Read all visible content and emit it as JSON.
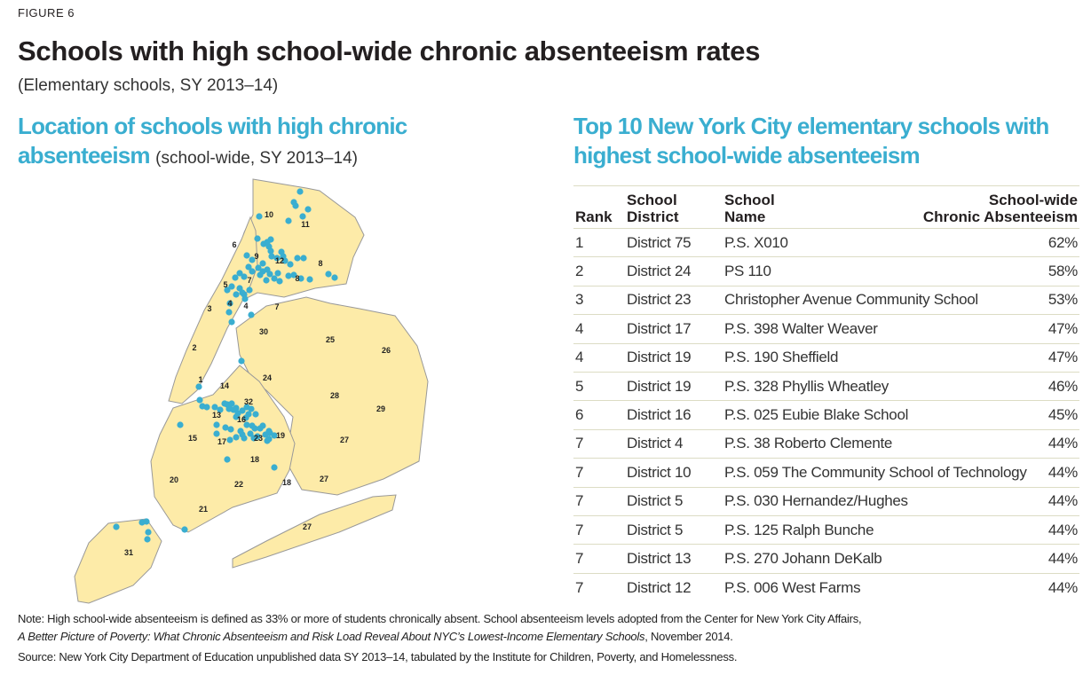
{
  "figure_label": "FIGURE 6",
  "title": "Schools with high school-wide chronic absenteeism rates",
  "subtitle": "(Elementary schools, SY 2013–14)",
  "map": {
    "heading": "Location of schools with high chronic absenteeism",
    "heading_sub": "(school-wide, SY 2013–14)",
    "district_labels": [
      "10",
      "11",
      "6",
      "9",
      "12",
      "8",
      "8",
      "7",
      "5",
      "7",
      "3",
      "4",
      "4",
      "30",
      "25",
      "26",
      "2",
      "24",
      "1",
      "14",
      "32",
      "28",
      "29",
      "13",
      "16",
      "23",
      "19",
      "15",
      "17",
      "27",
      "18",
      "20",
      "22",
      "18",
      "27",
      "21",
      "27",
      "31"
    ],
    "fill_color": "#fdeba8",
    "dot_color": "#3aaed0"
  },
  "table": {
    "heading": "Top 10 New York City elementary schools with highest school-wide absenteeism",
    "headers": {
      "rank": "Rank",
      "district": [
        "School",
        "District"
      ],
      "name": [
        "School",
        "Name"
      ],
      "rate": [
        "School-wide",
        "Chronic Absenteeism"
      ]
    },
    "rows": [
      [
        "1",
        "District 75",
        "P.S. X010",
        "62%"
      ],
      [
        "2",
        "District 24",
        "PS 110",
        "58%"
      ],
      [
        "3",
        "District 23",
        "Christopher Avenue Community School",
        "53%"
      ],
      [
        "4",
        "District 17",
        "P.S. 398 Walter Weaver",
        "47%"
      ],
      [
        "4",
        "District 19",
        "P.S. 190 Sheffield",
        "47%"
      ],
      [
        "5",
        "District 19",
        "P.S. 328 Phyllis Wheatley",
        "46%"
      ],
      [
        "6",
        "District 16",
        "P.S. 025 Eubie Blake School",
        "45%"
      ],
      [
        "7",
        "District 4",
        "P.S. 38 Roberto Clemente",
        "44%"
      ],
      [
        "7",
        "District 10",
        "P.S. 059 The Community School of Technology",
        "44%"
      ],
      [
        "7",
        "District 5",
        "P.S. 030 Hernandez/Hughes",
        "44%"
      ],
      [
        "7",
        "District 5",
        "P.S. 125 Ralph Bunche",
        "44%"
      ],
      [
        "7",
        "District 13",
        "P.S. 270 Johann DeKalb",
        "44%"
      ],
      [
        "7",
        "District 12",
        "P.S. 006 West Farms",
        "44%"
      ]
    ]
  },
  "notes": {
    "note_prefix": "Note: High school-wide absenteeism is defined as 33% or more of students chronically absent. School absenteeism levels adopted from the Center for New York City Affairs,",
    "note_title": "A Better Picture of Poverty: What Chronic Absenteeism and Risk Load Reveal About NYC’s Lowest-Income Elementary Schools",
    "note_suffix": ", November 2014.",
    "source": "Source: New York City Department of Education unpublished data SY 2013–14, tabulated by the Institute for Children, Poverty, and Homelessness."
  }
}
